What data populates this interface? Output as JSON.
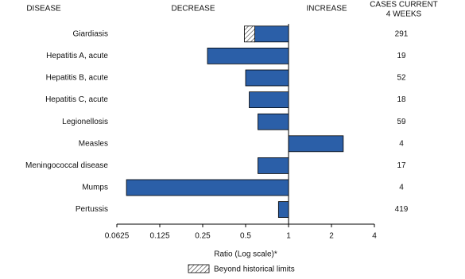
{
  "chart_data": {
    "type": "bar",
    "header_disease": "DISEASE",
    "header_decrease": "DECREASE",
    "header_increase": "INCREASE",
    "cases_header": [
      "CASES CURRENT",
      "4 WEEKS"
    ],
    "categories": [
      "Giardiasis",
      "Hepatitis A, acute",
      "Hepatitis B, acute",
      "Hepatitis C, acute",
      "Legionellosis",
      "Measles",
      "Meningococcal disease",
      "Mumps",
      "Pertussis"
    ],
    "values": [
      0.49,
      0.27,
      0.5,
      0.53,
      0.61,
      2.42,
      0.61,
      0.073,
      0.85
    ],
    "historical_limits": [
      0.58,
      null,
      null,
      null,
      null,
      null,
      null,
      null,
      null
    ],
    "cases": [
      291,
      19,
      52,
      18,
      59,
      4,
      17,
      4,
      419
    ],
    "color": "#2b5fa8",
    "log_scale": true,
    "xlim": [
      0.0625,
      4
    ],
    "xticks": [
      0.0625,
      0.125,
      0.25,
      0.5,
      1,
      2,
      4
    ],
    "x_label": "Ratio (Log scale)*",
    "legend_label": "Beyond historical limits"
  }
}
